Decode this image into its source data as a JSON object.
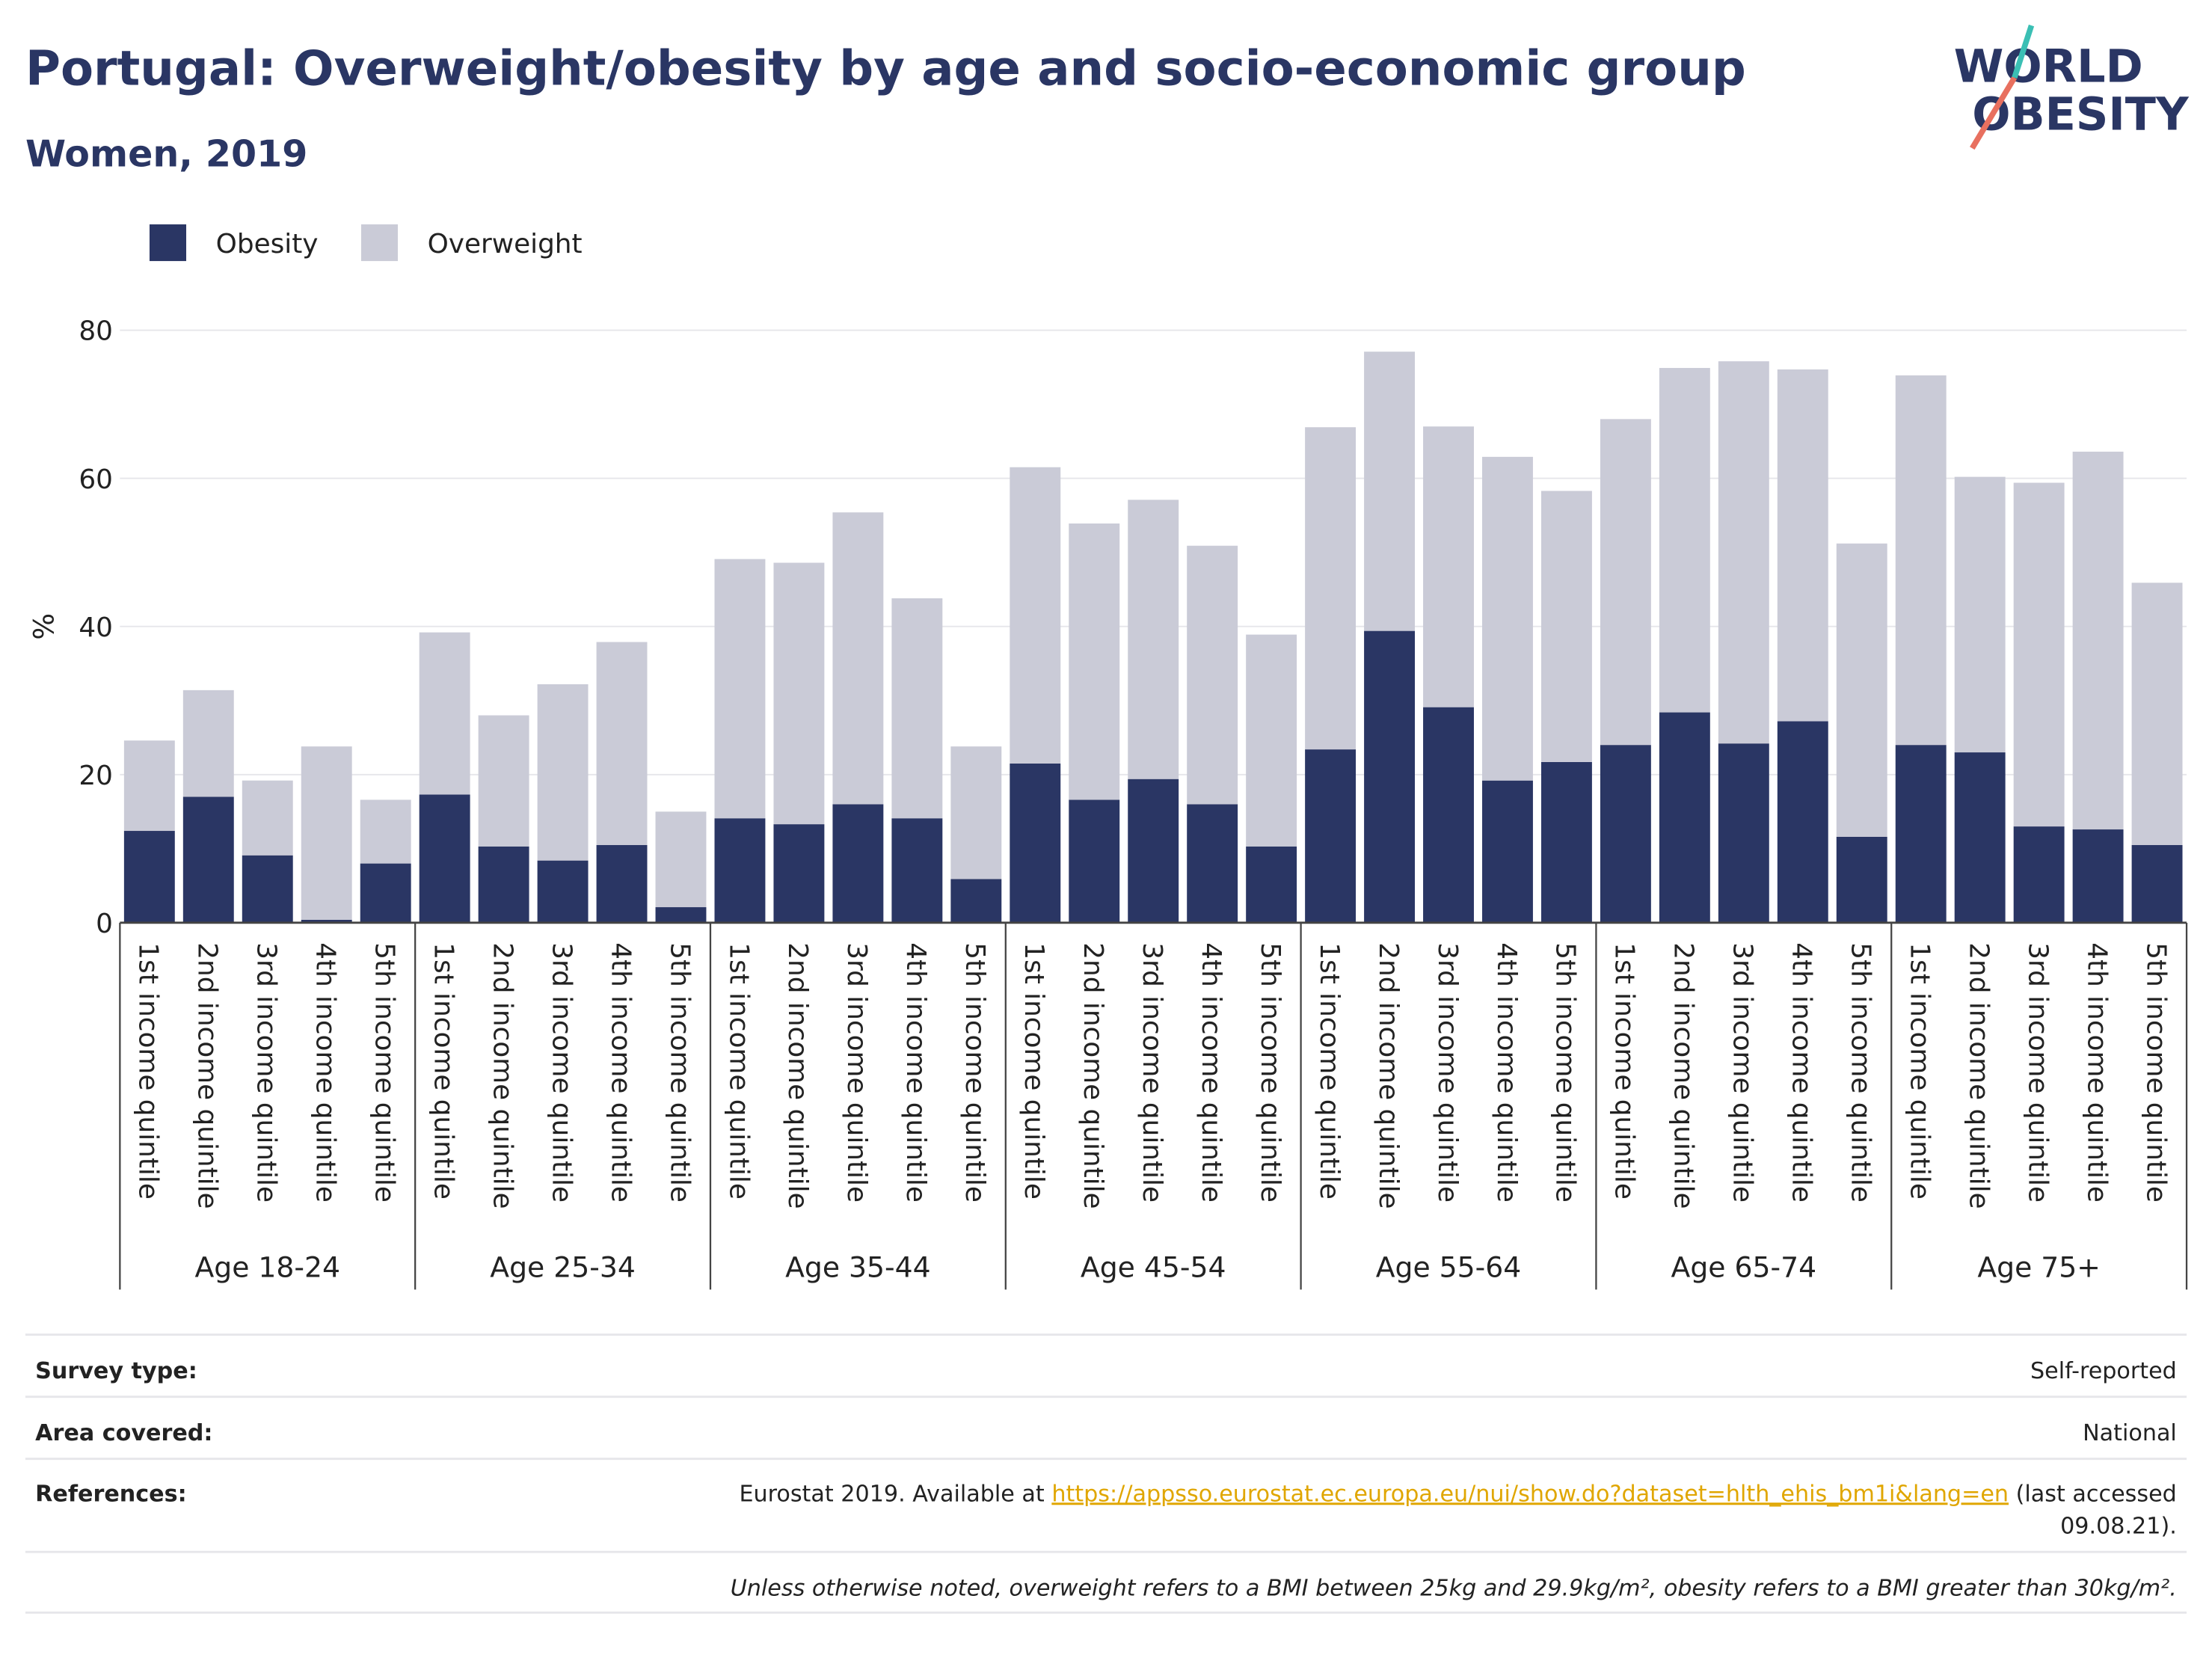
{
  "chart_data": {
    "type": "stacked_bar",
    "title": "Portugal: Overweight/obesity by age and socio-economic group",
    "subtitle": "Women, 2019",
    "ylabel": "%",
    "groups": [
      {
        "name": "Age 18-24",
        "categories": [
          "1st income quintile",
          "2nd income quintile",
          "3rd income quintile",
          "4th income quintile",
          "5th income quintile"
        ]
      },
      {
        "name": "Age 25-34",
        "categories": [
          "1st income quintile",
          "2nd income quintile",
          "3rd income quintile",
          "4th income quintile",
          "5th income quintile"
        ]
      },
      {
        "name": "Age 35-44",
        "categories": [
          "1st income quintile",
          "2nd income quintile",
          "3rd income quintile",
          "4th income quintile",
          "5th income quintile"
        ]
      },
      {
        "name": "Age 45-54",
        "categories": [
          "1st income quintile",
          "2nd income quintile",
          "3rd income quintile",
          "4th income quintile",
          "5th income quintile"
        ]
      },
      {
        "name": "Age 55-64",
        "categories": [
          "1st income quintile",
          "2nd income quintile",
          "3rd income quintile",
          "4th income quintile",
          "5th income quintile"
        ]
      },
      {
        "name": "Age 65-74",
        "categories": [
          "1st income quintile",
          "2nd income quintile",
          "3rd income quintile",
          "4th income quintile",
          "5th income quintile"
        ]
      },
      {
        "name": "Age 75+",
        "categories": [
          "1st income quintile",
          "2nd income quintile",
          "3rd income quintile",
          "4th income quintile",
          "5th income quintile"
        ]
      }
    ],
    "series": [
      {
        "name": "Obesity",
        "color": "#2a3664",
        "values": [
          12.4,
          17.0,
          9.1,
          0.4,
          8.0,
          17.3,
          10.3,
          8.4,
          10.5,
          2.1,
          14.1,
          13.3,
          16.0,
          14.1,
          5.9,
          21.5,
          16.6,
          19.4,
          16.0,
          10.3,
          23.4,
          39.4,
          29.1,
          19.2,
          21.7,
          24.0,
          28.4,
          24.2,
          27.2,
          11.6,
          24.0,
          23.0,
          13.0,
          12.6,
          10.5
        ]
      },
      {
        "name": "Overweight",
        "color": "#cacbd7",
        "values": [
          12.2,
          14.4,
          10.1,
          23.4,
          8.6,
          21.9,
          17.7,
          23.8,
          27.4,
          12.9,
          35.0,
          35.3,
          39.4,
          29.7,
          17.9,
          40.0,
          37.3,
          37.7,
          34.9,
          28.6,
          43.5,
          37.7,
          37.9,
          43.7,
          36.6,
          44.0,
          46.5,
          51.6,
          47.5,
          39.6,
          49.9,
          37.2,
          46.4,
          51.0,
          35.4
        ]
      }
    ],
    "ylim": [
      0,
      80
    ],
    "yticks": [
      0,
      20,
      40,
      60,
      80
    ],
    "grid": true,
    "legend": "top-left"
  },
  "logo": [
    "WORLD",
    "OBESITY"
  ],
  "footer": {
    "rows": [
      {
        "label": "Survey type:",
        "value": "Self-reported"
      },
      {
        "label": "Area covered:",
        "value": "National"
      }
    ],
    "references": {
      "label": "References:",
      "prefix": "Eurostat 2019. Available at ",
      "link": "https://appsso.eurostat.ec.europa.eu/nui/show.do?dataset=hlth_ehis_bm1i&lang=en",
      "suffix": [
        " (last accessed",
        "09.08.21)."
      ]
    },
    "note": "Unless otherwise noted, overweight refers to a BMI between 25kg and 29.9kg/m², obesity refers to a BMI greater than 30kg/m²."
  }
}
